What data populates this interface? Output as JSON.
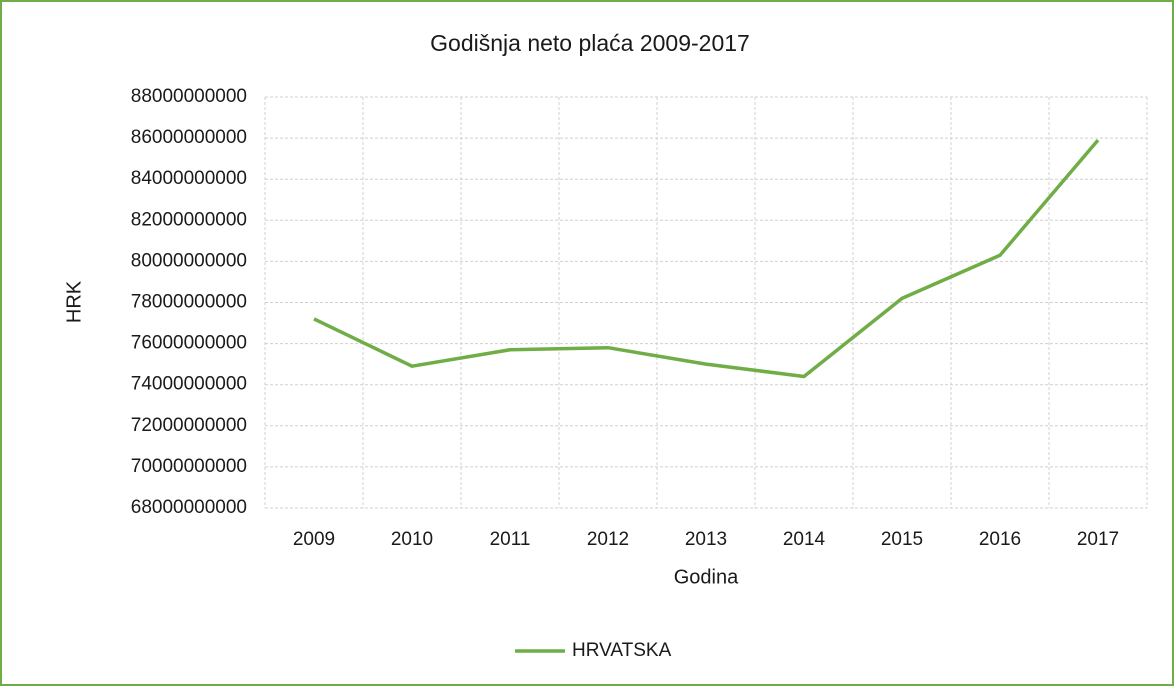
{
  "chart_data": {
    "type": "line",
    "title": "Godišnja neto plaća 2009-2017",
    "x_label": "Godina",
    "y_label": "HRK",
    "categories": [
      "2009",
      "2010",
      "2011",
      "2012",
      "2013",
      "2014",
      "2015",
      "2016",
      "2017"
    ],
    "series": [
      {
        "name": "HRVATSKA",
        "color": "#70ad47",
        "values": [
          77200000000,
          74900000000,
          75700000000,
          75800000000,
          75000000000,
          74400000000,
          78200000000,
          80300000000,
          85900000000
        ]
      }
    ],
    "ylim": [
      68000000000,
      88000000000
    ],
    "yticks": [
      68000000000,
      70000000000,
      72000000000,
      74000000000,
      76000000000,
      78000000000,
      80000000000,
      82000000000,
      84000000000,
      86000000000,
      88000000000
    ],
    "grid": true,
    "legend": "bottom"
  }
}
